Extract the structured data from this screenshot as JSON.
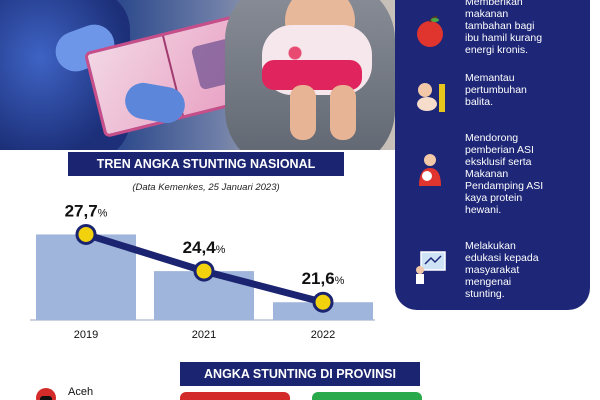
{
  "chart_title": "TREN ANGKA STUNTING NASIONAL",
  "chart_subtitle": "(Data Kemenkes, 25 Januari 2023)",
  "chart_data": {
    "type": "bar",
    "title": "TREN ANGKA STUNTING NASIONAL",
    "subtitle": "(Data Kemenkes, 25 Januari 2023)",
    "categories": [
      "2019",
      "2021",
      "2022"
    ],
    "values": [
      27.7,
      24.4,
      21.6
    ],
    "value_labels": [
      "27,7",
      "24,4",
      "21,6"
    ],
    "unit": "%",
    "ylim": [
      20,
      29
    ],
    "grid": false,
    "overlay_line": true
  },
  "tips": [
    {
      "icon": "apple-icon",
      "text": "Memberikan\nmakanan\ntambahan bagi\nibu hamil kurang\nenergi kronis."
    },
    {
      "icon": "baby-measure-icon",
      "text": "Memantau\npertumbuhan\nbalita."
    },
    {
      "icon": "breastfeeding-icon",
      "text": "Mendorong\npemberian ASI\neksklusif serta\nMakanan\nPendamping ASI\nkaya protein\nhewani."
    },
    {
      "icon": "education-icon",
      "text": "Melakukan\nedukasi kepada\nmasyarakat\nmengenai\nstunting."
    }
  ],
  "province_title": "ANGKA STUNTING DI PROVINSI",
  "province_first": "Aceh",
  "colors": {
    "navy": "#1b2470",
    "bar": "#9fb5db",
    "line": "#1b2470",
    "point": "#f2d20d",
    "red": "#d32a2a",
    "green": "#2aa94a"
  }
}
